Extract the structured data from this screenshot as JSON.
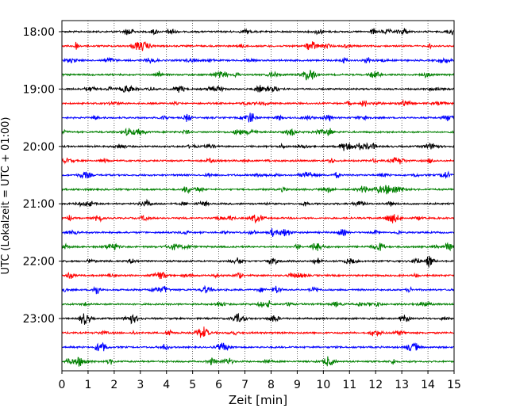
{
  "chart_data": {
    "type": "line",
    "title": "",
    "xlabel": "Zeit  [min]",
    "ylabel": "UTC (Lokalzeit = UTC + 01:00)",
    "xlim": [
      0,
      15
    ],
    "x_ticks": [
      "0",
      "1",
      "2",
      "3",
      "4",
      "5",
      "6",
      "7",
      "8",
      "9",
      "10",
      "11",
      "12",
      "13",
      "14",
      "15"
    ],
    "y_tick_labels": [
      "18:00",
      "19:00",
      "20:00",
      "21:00",
      "22:00",
      "23:00"
    ],
    "grid": "vertical dotted at each minute",
    "trace_start": "18:00",
    "trace_interval_minutes": 15,
    "trace_count": 24,
    "trace_colors": [
      "#000000",
      "#ff0000",
      "#0000ff",
      "#008000"
    ]
  }
}
